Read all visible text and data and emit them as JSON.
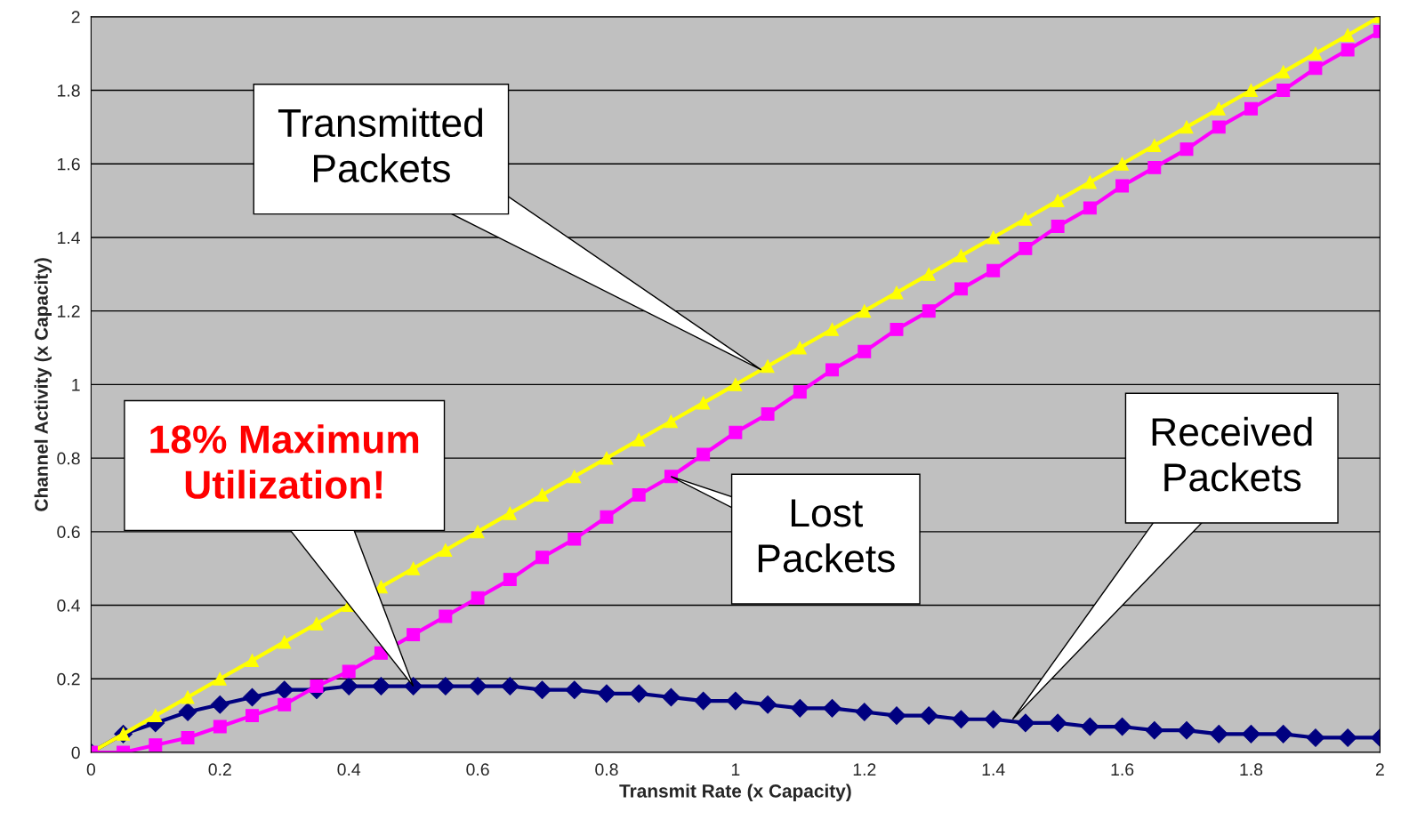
{
  "chart_data": {
    "type": "line",
    "xlabel": "Transmit Rate (x Capacity)",
    "ylabel": "Channel Activity (x Capacity)",
    "x": [
      0,
      0.05,
      0.1,
      0.15,
      0.2,
      0.25,
      0.3,
      0.35,
      0.4,
      0.45,
      0.5,
      0.55,
      0.6,
      0.65,
      0.7,
      0.75,
      0.8,
      0.85,
      0.9,
      0.95,
      1.0,
      1.05,
      1.1,
      1.15,
      1.2,
      1.25,
      1.3,
      1.35,
      1.4,
      1.45,
      1.5,
      1.55,
      1.6,
      1.65,
      1.7,
      1.75,
      1.8,
      1.85,
      1.9,
      1.95,
      2.0
    ],
    "series": [
      {
        "color": "#000080",
        "marker": "diamond",
        "values": [
          0,
          0.05,
          0.08,
          0.11,
          0.13,
          0.15,
          0.17,
          0.17,
          0.18,
          0.18,
          0.18,
          0.18,
          0.18,
          0.18,
          0.17,
          0.17,
          0.16,
          0.16,
          0.15,
          0.14,
          0.14,
          0.13,
          0.12,
          0.12,
          0.11,
          0.1,
          0.1,
          0.09,
          0.09,
          0.08,
          0.08,
          0.07,
          0.07,
          0.06,
          0.06,
          0.05,
          0.05,
          0.05,
          0.04,
          0.04,
          0.04
        ]
      },
      {
        "color": "#ffff00",
        "marker": "triangle",
        "values": [
          0,
          0.05,
          0.1,
          0.15,
          0.2,
          0.25,
          0.3,
          0.35,
          0.4,
          0.45,
          0.5,
          0.55,
          0.6,
          0.65,
          0.7,
          0.75,
          0.8,
          0.85,
          0.9,
          0.95,
          1.0,
          1.05,
          1.1,
          1.15,
          1.2,
          1.25,
          1.3,
          1.35,
          1.4,
          1.45,
          1.5,
          1.55,
          1.6,
          1.65,
          1.7,
          1.75,
          1.8,
          1.85,
          1.9,
          1.95,
          2.0
        ]
      },
      {
        "color": "#ff00ff",
        "marker": "square",
        "values": [
          0,
          0.0,
          0.02,
          0.04,
          0.07,
          0.1,
          0.13,
          0.18,
          0.22,
          0.27,
          0.32,
          0.37,
          0.42,
          0.47,
          0.53,
          0.58,
          0.64,
          0.7,
          0.75,
          0.81,
          0.87,
          0.92,
          0.98,
          1.04,
          1.09,
          1.15,
          1.2,
          1.26,
          1.31,
          1.37,
          1.43,
          1.48,
          1.54,
          1.59,
          1.64,
          1.7,
          1.75,
          1.8,
          1.86,
          1.91,
          1.96
        ]
      }
    ],
    "xlim": [
      0,
      2
    ],
    "xticks": [
      0,
      0.2,
      0.4,
      0.6,
      0.8,
      1,
      1.2,
      1.4,
      1.6,
      1.8,
      2
    ],
    "ylim": [
      0,
      2
    ],
    "yticks": [
      0,
      0.2,
      0.4,
      0.6,
      0.8,
      1,
      1.2,
      1.4,
      1.6,
      1.8,
      2
    ],
    "grid": "y",
    "legend": false,
    "annotations": [
      "Transmitted\nPackets",
      "Lost\nPackets",
      "Received\nPackets",
      "18% Maximum\nUtilization!"
    ]
  }
}
